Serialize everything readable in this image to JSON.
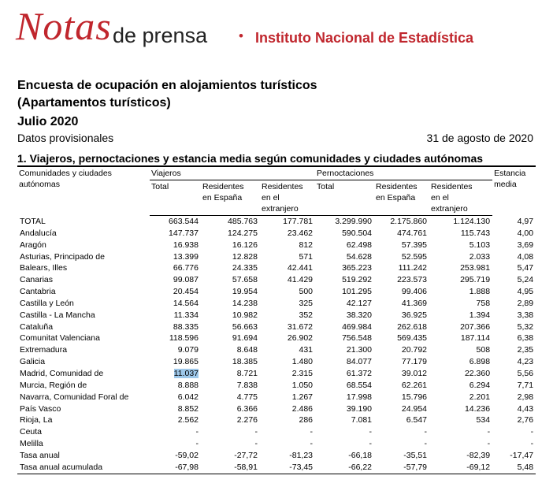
{
  "header": {
    "logo": "Notas",
    "subtitle": "de prensa",
    "separator": "•",
    "institute": "Instituto Nacional de Estadística"
  },
  "document": {
    "title_lines": [
      "Encuesta de ocupación en alojamientos turísticos",
      "(Apartamentos turísticos)"
    ],
    "period": "Julio 2020",
    "note": "Datos provisionales",
    "date": "31 de agosto de 2020",
    "section_title": "1. Viajeros, pernoctaciones y estancia media según comunidades y ciudades autónomas"
  },
  "table": {
    "header": {
      "region": "Comunidades y ciudades autónomas",
      "groups": [
        "Viajeros",
        "Pernoctaciones",
        "Estancia media"
      ],
      "subheaders": [
        "Total",
        "Residentes en España",
        "Residentes en el extranjero",
        "Total",
        "Residentes en España",
        "Residentes en el extranjero"
      ]
    },
    "rows": [
      [
        "TOTAL",
        "663.544",
        "485.763",
        "177.781",
        "3.299.990",
        "2.175.860",
        "1.124.130",
        "4,97"
      ],
      [
        "Andalucía",
        "147.737",
        "124.275",
        "23.462",
        "590.504",
        "474.761",
        "115.743",
        "4,00"
      ],
      [
        "Aragón",
        "16.938",
        "16.126",
        "812",
        "62.498",
        "57.395",
        "5.103",
        "3,69"
      ],
      [
        "Asturias, Principado de",
        "13.399",
        "12.828",
        "571",
        "54.628",
        "52.595",
        "2.033",
        "4,08"
      ],
      [
        "Balears, Illes",
        "66.776",
        "24.335",
        "42.441",
        "365.223",
        "111.242",
        "253.981",
        "5,47"
      ],
      [
        "Canarias",
        "99.087",
        "57.658",
        "41.429",
        "519.292",
        "223.573",
        "295.719",
        "5,24"
      ],
      [
        "Cantabria",
        "20.454",
        "19.954",
        "500",
        "101.295",
        "99.406",
        "1.888",
        "4,95"
      ],
      [
        "Castilla y León",
        "14.564",
        "14.238",
        "325",
        "42.127",
        "41.369",
        "758",
        "2,89"
      ],
      [
        "Castilla  - La Mancha",
        "11.334",
        "10.982",
        "352",
        "38.320",
        "36.925",
        "1.394",
        "3,38"
      ],
      [
        "Cataluña",
        "88.335",
        "56.663",
        "31.672",
        "469.984",
        "262.618",
        "207.366",
        "5,32"
      ],
      [
        "Comunitat Valenciana",
        "118.596",
        "91.694",
        "26.902",
        "756.548",
        "569.435",
        "187.114",
        "6,38"
      ],
      [
        "Extremadura",
        "9.079",
        "8.648",
        "431",
        "21.300",
        "20.792",
        "508",
        "2,35"
      ],
      [
        "Galicia",
        "19.865",
        "18.385",
        "1.480",
        "84.077",
        "77.179",
        "6.898",
        "4,23"
      ],
      [
        "Madrid, Comunidad de",
        "11.037",
        "8.721",
        "2.315",
        "61.372",
        "39.012",
        "22.360",
        "5,56"
      ],
      [
        "Murcia, Región de",
        "8.888",
        "7.838",
        "1.050",
        "68.554",
        "62.261",
        "6.294",
        "7,71"
      ],
      [
        "Navarra, Comunidad Foral de",
        "6.042",
        "4.775",
        "1.267",
        "17.998",
        "15.796",
        "2.201",
        "2,98"
      ],
      [
        "País Vasco",
        "8.852",
        "6.366",
        "2.486",
        "39.190",
        "24.954",
        "14.236",
        "4,43"
      ],
      [
        "Rioja, La",
        "2.562",
        "2.276",
        "286",
        "7.081",
        "6.547",
        "534",
        "2,76"
      ],
      [
        "Ceuta",
        "-",
        "-",
        "-",
        "-",
        "-",
        "-",
        "-"
      ],
      [
        "Melilla",
        "-",
        "-",
        "-",
        "-",
        "-",
        "-",
        "-"
      ],
      [
        "Tasa anual",
        "-59,02",
        "-27,72",
        "-81,23",
        "-66,18",
        "-35,51",
        "-82,39",
        "-17,47"
      ],
      [
        "Tasa anual acumulada",
        "-67,98",
        "-58,91",
        "-73,45",
        "-66,22",
        "-57,79",
        "-69,12",
        "5,48"
      ]
    ]
  }
}
